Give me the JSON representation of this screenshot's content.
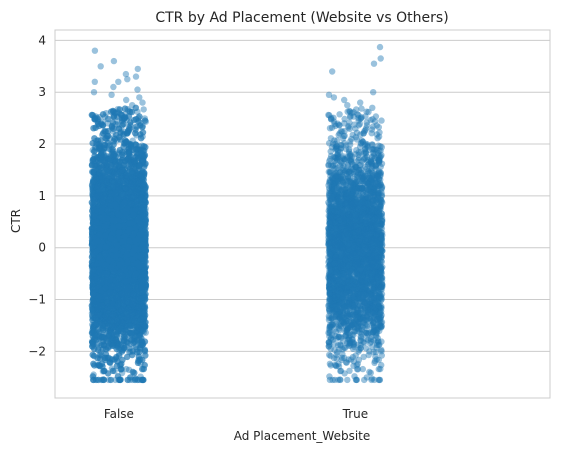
{
  "chart_data": {
    "type": "scatter",
    "subtype": "strip",
    "title": "CTR by Ad Placement (Website vs Others)",
    "xlabel": "Ad Placement_Website",
    "ylabel": "CTR",
    "categories": [
      "False",
      "True"
    ],
    "y_ticks": [
      "−2",
      "−1",
      "0",
      "1",
      "2",
      "3",
      "4"
    ],
    "y_tick_values": [
      -2,
      -1,
      0,
      1,
      2,
      3,
      4
    ],
    "ylim": [
      -2.9,
      4.2
    ],
    "grid": "horizontal",
    "legend": "none",
    "point_color": "#1f77b4",
    "point_opacity": 0.45,
    "series": [
      {
        "category": "False",
        "approx_count": 8000,
        "min": -2.55,
        "max": 3.8,
        "outliers": [
          3.8,
          3.6,
          3.5,
          3.45,
          3.35,
          3.3,
          3.25,
          3.2,
          3.2,
          3.1,
          3.05,
          3.0,
          2.95,
          2.9,
          2.85,
          2.8,
          2.75
        ]
      },
      {
        "category": "True",
        "approx_count": 3500,
        "min": -2.55,
        "max": 3.87,
        "outliers": [
          3.87,
          3.65,
          3.55,
          3.4,
          3.0,
          2.95,
          2.9,
          2.85,
          2.8,
          2.75
        ]
      }
    ]
  }
}
